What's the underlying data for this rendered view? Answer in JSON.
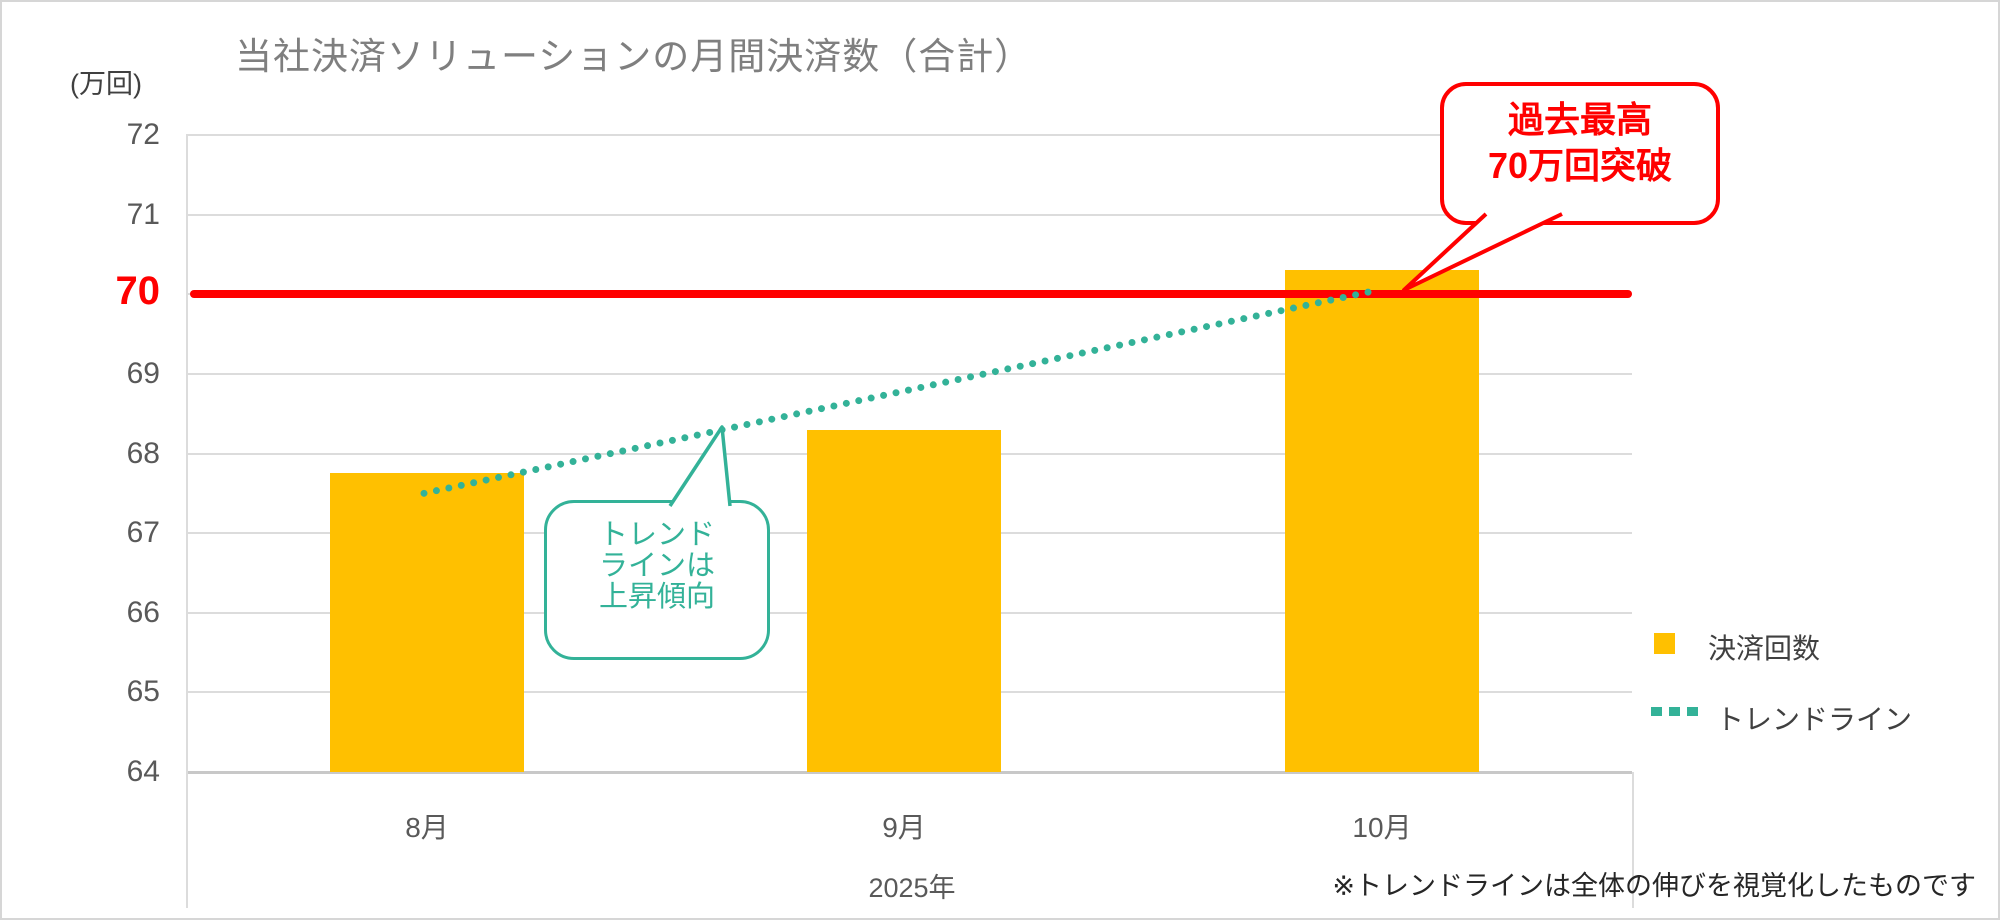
{
  "title": "当社決済ソリューションの月間決済数（合計）",
  "y_axis": {
    "unit_label": "(万回)",
    "ticks": [
      72,
      71,
      70,
      69,
      68,
      67,
      66,
      65,
      64
    ],
    "highlight_tick": 70
  },
  "x_axis": {
    "year_label": "2025年"
  },
  "chart_data": {
    "type": "bar",
    "title": "当社決済ソリューションの月間決済数（合計）",
    "categories": [
      "8月",
      "9月",
      "10月"
    ],
    "series": [
      {
        "name": "決済回数",
        "type": "bar",
        "values": [
          67.75,
          68.3,
          70.3
        ]
      },
      {
        "name": "トレンドライン",
        "type": "line",
        "values": [
          67.5,
          68.8,
          70.05
        ]
      }
    ],
    "ylabel": "(万回)",
    "ylim": [
      64,
      72
    ],
    "grid": true,
    "legend_position": "right",
    "reference_line": {
      "value": 70,
      "label": "70"
    },
    "trendline_endpoints": {
      "start_value": 67.5,
      "end_value": 70.05
    }
  },
  "annotations": {
    "trend": {
      "lines": [
        "トレンド",
        "ラインは",
        "上昇傾向"
      ]
    },
    "record": {
      "lines": [
        "過去最高",
        "70万回突破"
      ]
    }
  },
  "legend": [
    {
      "label": "決済回数",
      "swatch": "bar-square"
    },
    {
      "label": "トレンドライン",
      "swatch": "dotted-line"
    }
  ],
  "footnote": "※トレンドラインは全体の伸びを視覚化したものです",
  "colors": {
    "bar": "#FFC000",
    "trend": "#33B298",
    "highlight": "#FF0000",
    "grid": "#DCDCDC",
    "axis_text": "#595959",
    "title_text": "#7F7F7F"
  }
}
